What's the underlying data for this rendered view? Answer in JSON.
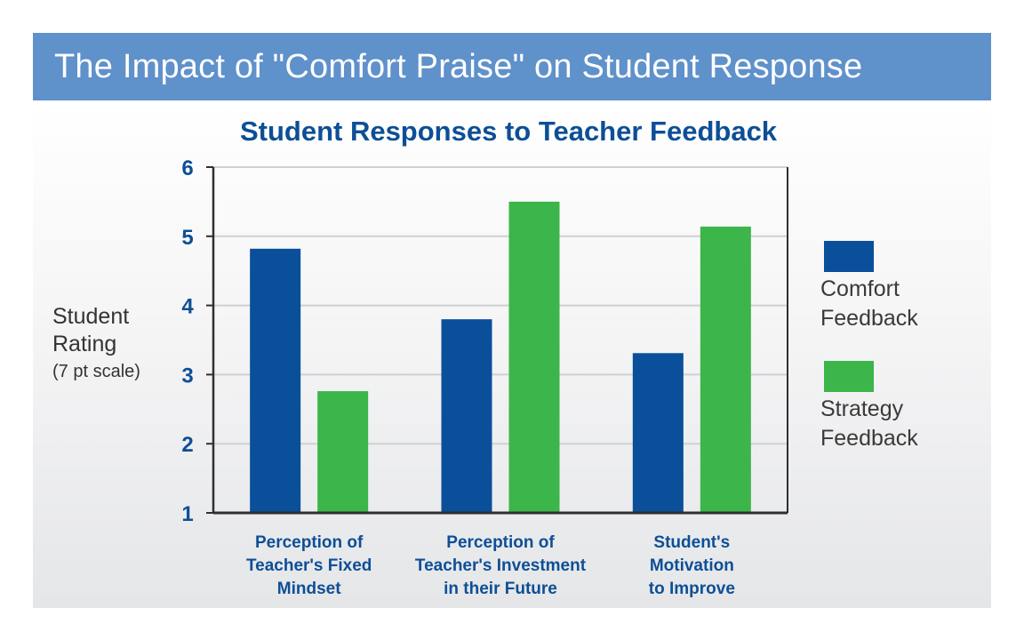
{
  "banner": {
    "title": "The Impact of \"Comfort Praise\" on Student Response"
  },
  "chart_data": {
    "type": "bar",
    "title": "Student Responses to Teacher Feedback",
    "ylabel": [
      "Student",
      "Rating"
    ],
    "ylabel_sub": "(7 pt scale)",
    "xlabel": "",
    "ylim": [
      1,
      6
    ],
    "yticks": [
      1,
      2,
      3,
      4,
      5,
      6
    ],
    "grid": true,
    "legend_position": "right",
    "categories": [
      [
        "Perception of",
        "Teacher's Fixed",
        "Mindset"
      ],
      [
        "Perception of",
        "Teacher's Investment",
        "in their Future"
      ],
      [
        "Student's",
        "Motivation",
        "to Improve"
      ]
    ],
    "series": [
      {
        "name": [
          "Comfort",
          "Feedback"
        ],
        "color": "#0a4f9a",
        "values": [
          4.82,
          3.8,
          3.31
        ]
      },
      {
        "name": [
          "Strategy",
          "Feedback"
        ],
        "color": "#3cb54a",
        "values": [
          2.76,
          5.5,
          5.14
        ]
      }
    ]
  }
}
